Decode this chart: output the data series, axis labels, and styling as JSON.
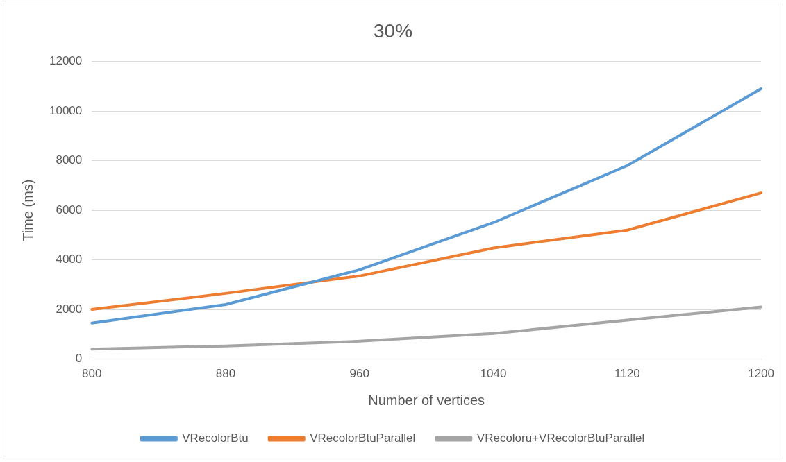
{
  "chart_data": {
    "type": "line",
    "title": "30%",
    "xlabel": "Number of vertices",
    "ylabel": "Time (ms)",
    "categories": [
      "800",
      "880",
      "960",
      "1040",
      "1120",
      "1200"
    ],
    "series": [
      {
        "name": "VRecolorBtu",
        "color": "#5b9bd5",
        "values": [
          1450,
          2200,
          3600,
          5500,
          7800,
          10900
        ]
      },
      {
        "name": "VRecolorBtuParallel",
        "color": "#ed7d31",
        "values": [
          2000,
          2650,
          3350,
          4480,
          5200,
          6700
        ]
      },
      {
        "name": "VRecoloru+VRecolorBtuParallel",
        "color": "#a5a5a5",
        "values": [
          400,
          530,
          720,
          1030,
          1570,
          2100
        ]
      }
    ],
    "ylim": [
      0,
      12000
    ],
    "yticks": [
      0,
      2000,
      4000,
      6000,
      8000,
      10000,
      12000
    ],
    "grid": "y",
    "legend": "bottom",
    "marker": "none",
    "line_style": "solid"
  }
}
